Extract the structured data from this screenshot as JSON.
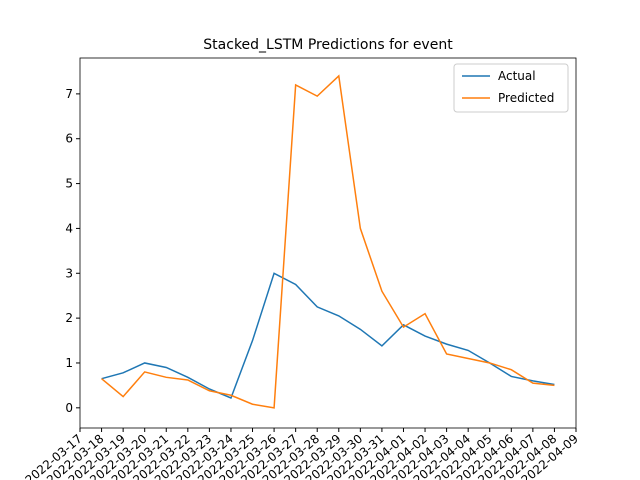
{
  "chart_data": {
    "type": "line",
    "title": "Stacked_LSTM Predictions for event",
    "x": [
      "2022-03-18",
      "2022-03-19",
      "2022-03-20",
      "2022-03-21",
      "2022-03-22",
      "2022-03-23",
      "2022-03-24",
      "2022-03-25",
      "2022-03-26",
      "2022-03-27",
      "2022-03-28",
      "2022-03-29",
      "2022-03-30",
      "2022-03-31",
      "2022-04-01",
      "2022-04-02",
      "2022-04-03",
      "2022-04-04",
      "2022-04-05",
      "2022-04-06",
      "2022-04-07",
      "2022-04-08"
    ],
    "series": [
      {
        "name": "Actual",
        "color": "#1f77b4",
        "values": [
          0.65,
          0.78,
          1.0,
          0.9,
          0.68,
          0.42,
          0.22,
          1.5,
          3.0,
          2.75,
          2.25,
          2.05,
          1.75,
          1.38,
          1.85,
          1.6,
          1.42,
          1.28,
          1.0,
          0.7,
          0.6,
          0.52
        ]
      },
      {
        "name": "Predicted",
        "color": "#ff7f0e",
        "values": [
          0.65,
          0.25,
          0.8,
          0.68,
          0.62,
          0.38,
          0.28,
          0.08,
          0.0,
          7.2,
          6.95,
          7.4,
          4.0,
          2.6,
          1.8,
          2.1,
          1.2,
          1.1,
          1.0,
          0.85,
          0.55,
          0.5
        ]
      }
    ],
    "xlim": [
      "2022-03-17",
      "2022-04-09"
    ],
    "xticks": [
      "2022-03-17",
      "2022-03-18",
      "2022-03-19",
      "2022-03-20",
      "2022-03-21",
      "2022-03-22",
      "2022-03-23",
      "2022-03-24",
      "2022-03-25",
      "2022-03-26",
      "2022-03-27",
      "2022-03-28",
      "2022-03-29",
      "2022-03-30",
      "2022-03-31",
      "2022-04-01",
      "2022-04-02",
      "2022-04-03",
      "2022-04-04",
      "2022-04-05",
      "2022-04-06",
      "2022-04-07",
      "2022-04-08",
      "2022-04-09"
    ],
    "ylim": [
      -0.45,
      7.8
    ],
    "yticks": [
      0,
      1,
      2,
      3,
      4,
      5,
      6,
      7
    ],
    "legend": "upper right"
  }
}
